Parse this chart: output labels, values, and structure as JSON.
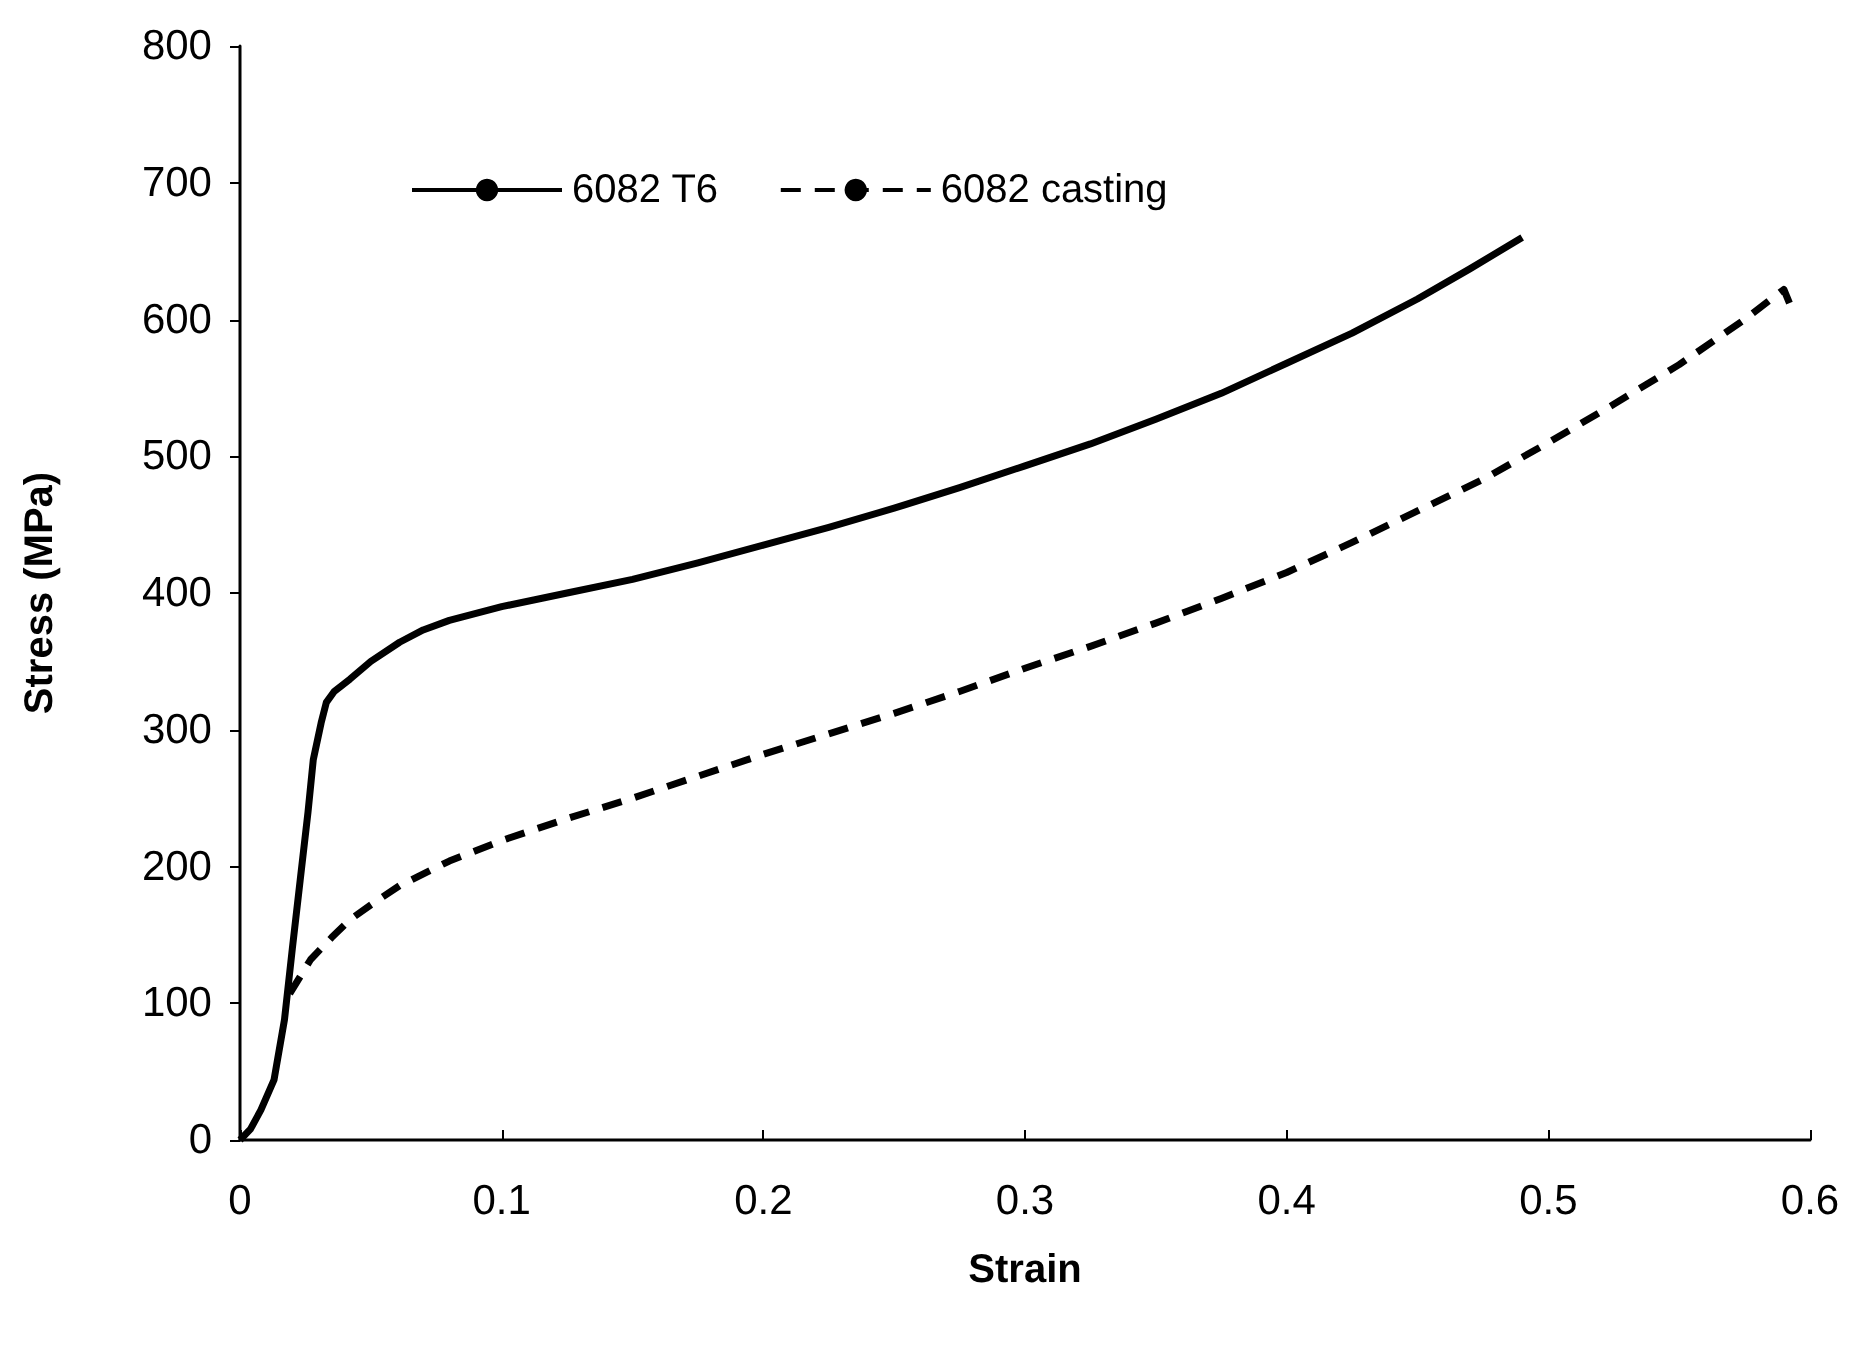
{
  "chart_data": {
    "type": "line",
    "xlabel": "Strain",
    "ylabel": "Stress (MPa)",
    "xlim": [
      0,
      0.6
    ],
    "xticks": [
      0,
      0.1,
      0.2,
      0.3,
      0.4,
      0.5,
      0.6
    ],
    "ylim": [
      0,
      800
    ],
    "yticks": [
      0,
      100,
      200,
      300,
      400,
      500,
      600,
      700,
      800
    ],
    "grid": false,
    "legend": "top left",
    "marker": "none",
    "series": [
      {
        "name": "6082 T6",
        "color": "#000000",
        "line_style": "solid",
        "x": [
          0,
          0.004,
          0.008,
          0.013,
          0.017,
          0.02,
          0.023,
          0.026,
          0.028,
          0.031,
          0.033,
          0.036,
          0.042,
          0.05,
          0.061,
          0.07,
          0.08,
          0.1,
          0.125,
          0.15,
          0.175,
          0.2,
          0.225,
          0.25,
          0.275,
          0.3,
          0.325,
          0.35,
          0.375,
          0.4,
          0.425,
          0.45,
          0.47,
          0.49
        ],
        "values": [
          0,
          8,
          22,
          44,
          88,
          140,
          190,
          240,
          278,
          305,
          320,
          328,
          337,
          350,
          364,
          373,
          380,
          390,
          400,
          410,
          422,
          435,
          448,
          462,
          477,
          493,
          509,
          527,
          546,
          568,
          590,
          615,
          637,
          660
        ]
      },
      {
        "name": "6082 casting",
        "color": "#000000",
        "line_style": "dashed",
        "x": [
          0.019,
          0.027,
          0.035,
          0.042,
          0.05,
          0.061,
          0.08,
          0.1,
          0.125,
          0.15,
          0.175,
          0.2,
          0.225,
          0.25,
          0.275,
          0.3,
          0.325,
          0.35,
          0.375,
          0.4,
          0.425,
          0.45,
          0.475,
          0.5,
          0.525,
          0.55,
          0.575,
          0.59,
          0.593
        ],
        "values": [
          107,
          132,
          148,
          161,
          172,
          186,
          204,
          219,
          235,
          250,
          266,
          282,
          297,
          312,
          328,
          345,
          361,
          378,
          396,
          415,
          437,
          460,
          483,
          510,
          538,
          567,
          600,
          622,
          608
        ]
      }
    ]
  }
}
